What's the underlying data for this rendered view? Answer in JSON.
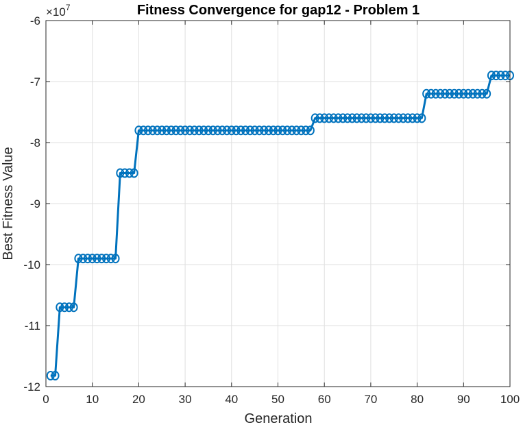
{
  "chart_data": {
    "type": "line",
    "title": "Fitness Convergence for gap12 - Problem 1",
    "xlabel": "Generation",
    "ylabel": "Best Fitness Value",
    "exponent_base": "×10",
    "exponent_power": "7",
    "xlim": [
      0,
      100
    ],
    "ylim": [
      -12,
      -6
    ],
    "xticks": [
      0,
      10,
      20,
      30,
      40,
      50,
      60,
      70,
      80,
      90,
      100
    ],
    "yticks": [
      -12,
      -11,
      -10,
      -9,
      -8,
      -7,
      -6
    ],
    "grid": true,
    "marker": "circle",
    "series": [
      {
        "color": "#0072BD",
        "steps": [
          {
            "from": 1,
            "to": 2,
            "value": -11.82
          },
          {
            "from": 3,
            "to": 6,
            "value": -10.7
          },
          {
            "from": 7,
            "to": 15,
            "value": -9.9
          },
          {
            "from": 16,
            "to": 19,
            "value": -8.5
          },
          {
            "from": 20,
            "to": 57,
            "value": -7.8
          },
          {
            "from": 58,
            "to": 81,
            "value": -7.6
          },
          {
            "from": 82,
            "to": 95,
            "value": -7.2
          },
          {
            "from": 96,
            "to": 100,
            "value": -6.9
          }
        ]
      }
    ]
  }
}
